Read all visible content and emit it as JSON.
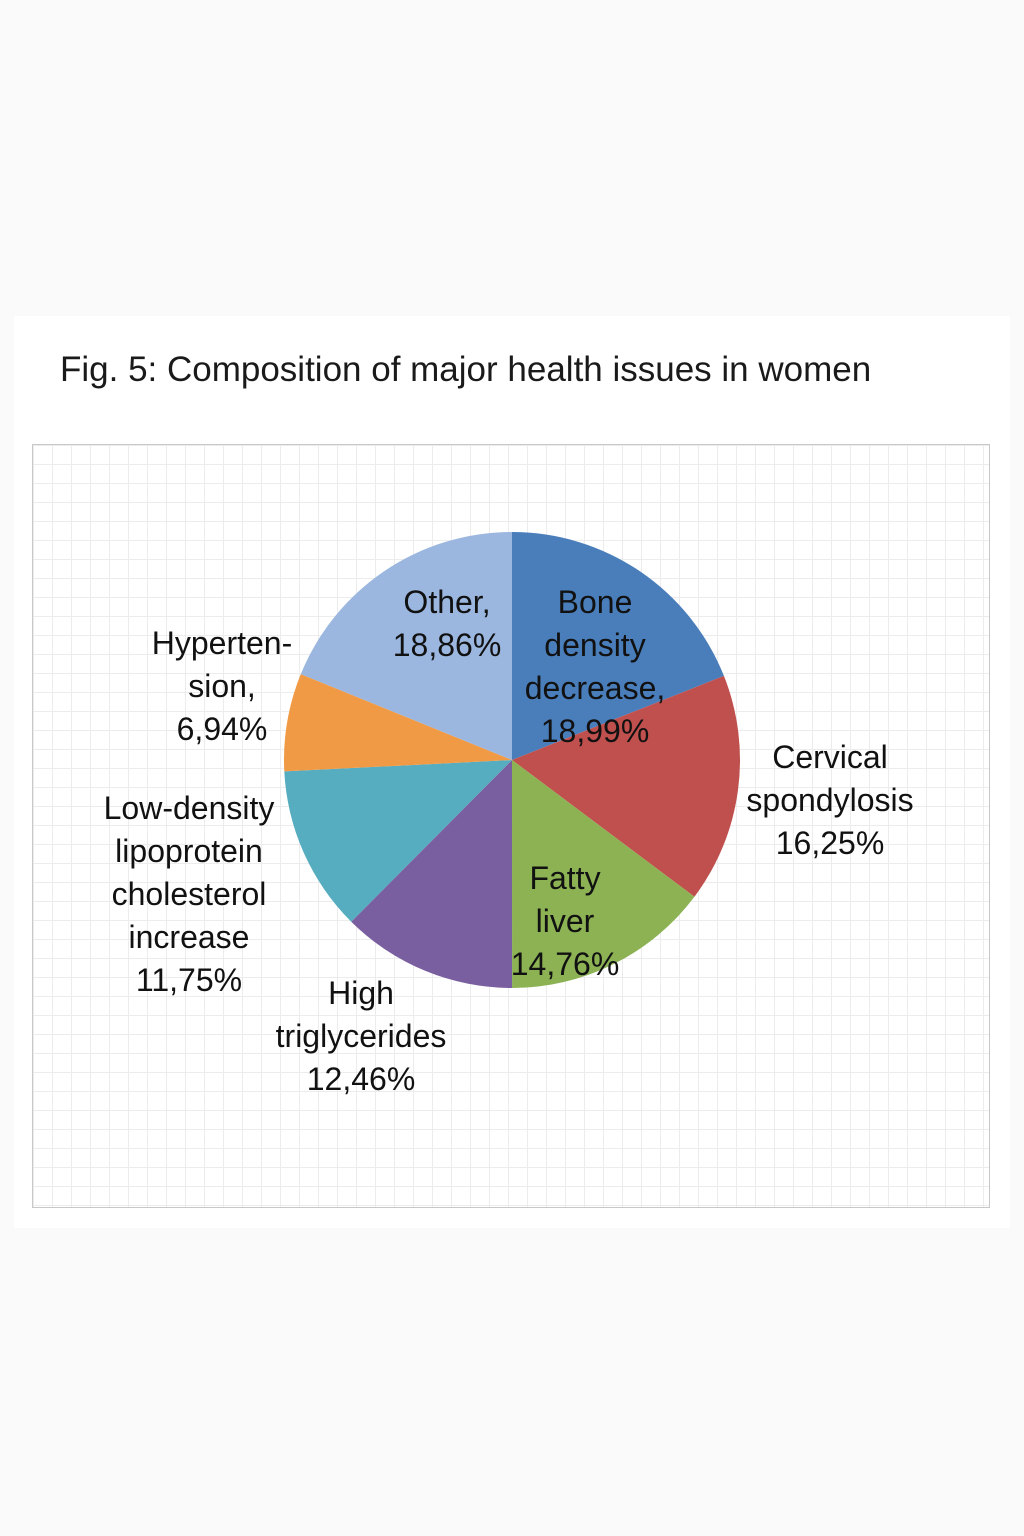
{
  "chart_data": {
    "type": "pie",
    "title": "Fig. 5: Composition of major health issues in women",
    "slices": [
      {
        "lines": [
          "Bone",
          "density",
          "decrease,",
          "18,99%"
        ],
        "value": 18.99,
        "color": "#4a7ebb"
      },
      {
        "lines": [
          "Cervical",
          "spondylosis",
          "16,25%"
        ],
        "value": 16.25,
        "color": "#c0504d"
      },
      {
        "lines": [
          "Fatty",
          "liver",
          "14,76%"
        ],
        "value": 14.76,
        "color": "#8cb254"
      },
      {
        "lines": [
          "High",
          "triglycerides",
          "12,46%"
        ],
        "value": 12.46,
        "color": "#7a5fa0"
      },
      {
        "lines": [
          "Low-density",
          "lipoprotein",
          "cholesterol",
          "increase",
          "11,75%"
        ],
        "value": 11.75,
        "color": "#56adc0"
      },
      {
        "lines": [
          "Hyperten-",
          "sion,",
          "6,94%"
        ],
        "value": 6.94,
        "color": "#f19a45"
      },
      {
        "lines": [
          "Other,",
          "18,86%"
        ],
        "value": 18.86,
        "color": "#9bb7df"
      }
    ],
    "grid": true,
    "legend": "none"
  }
}
